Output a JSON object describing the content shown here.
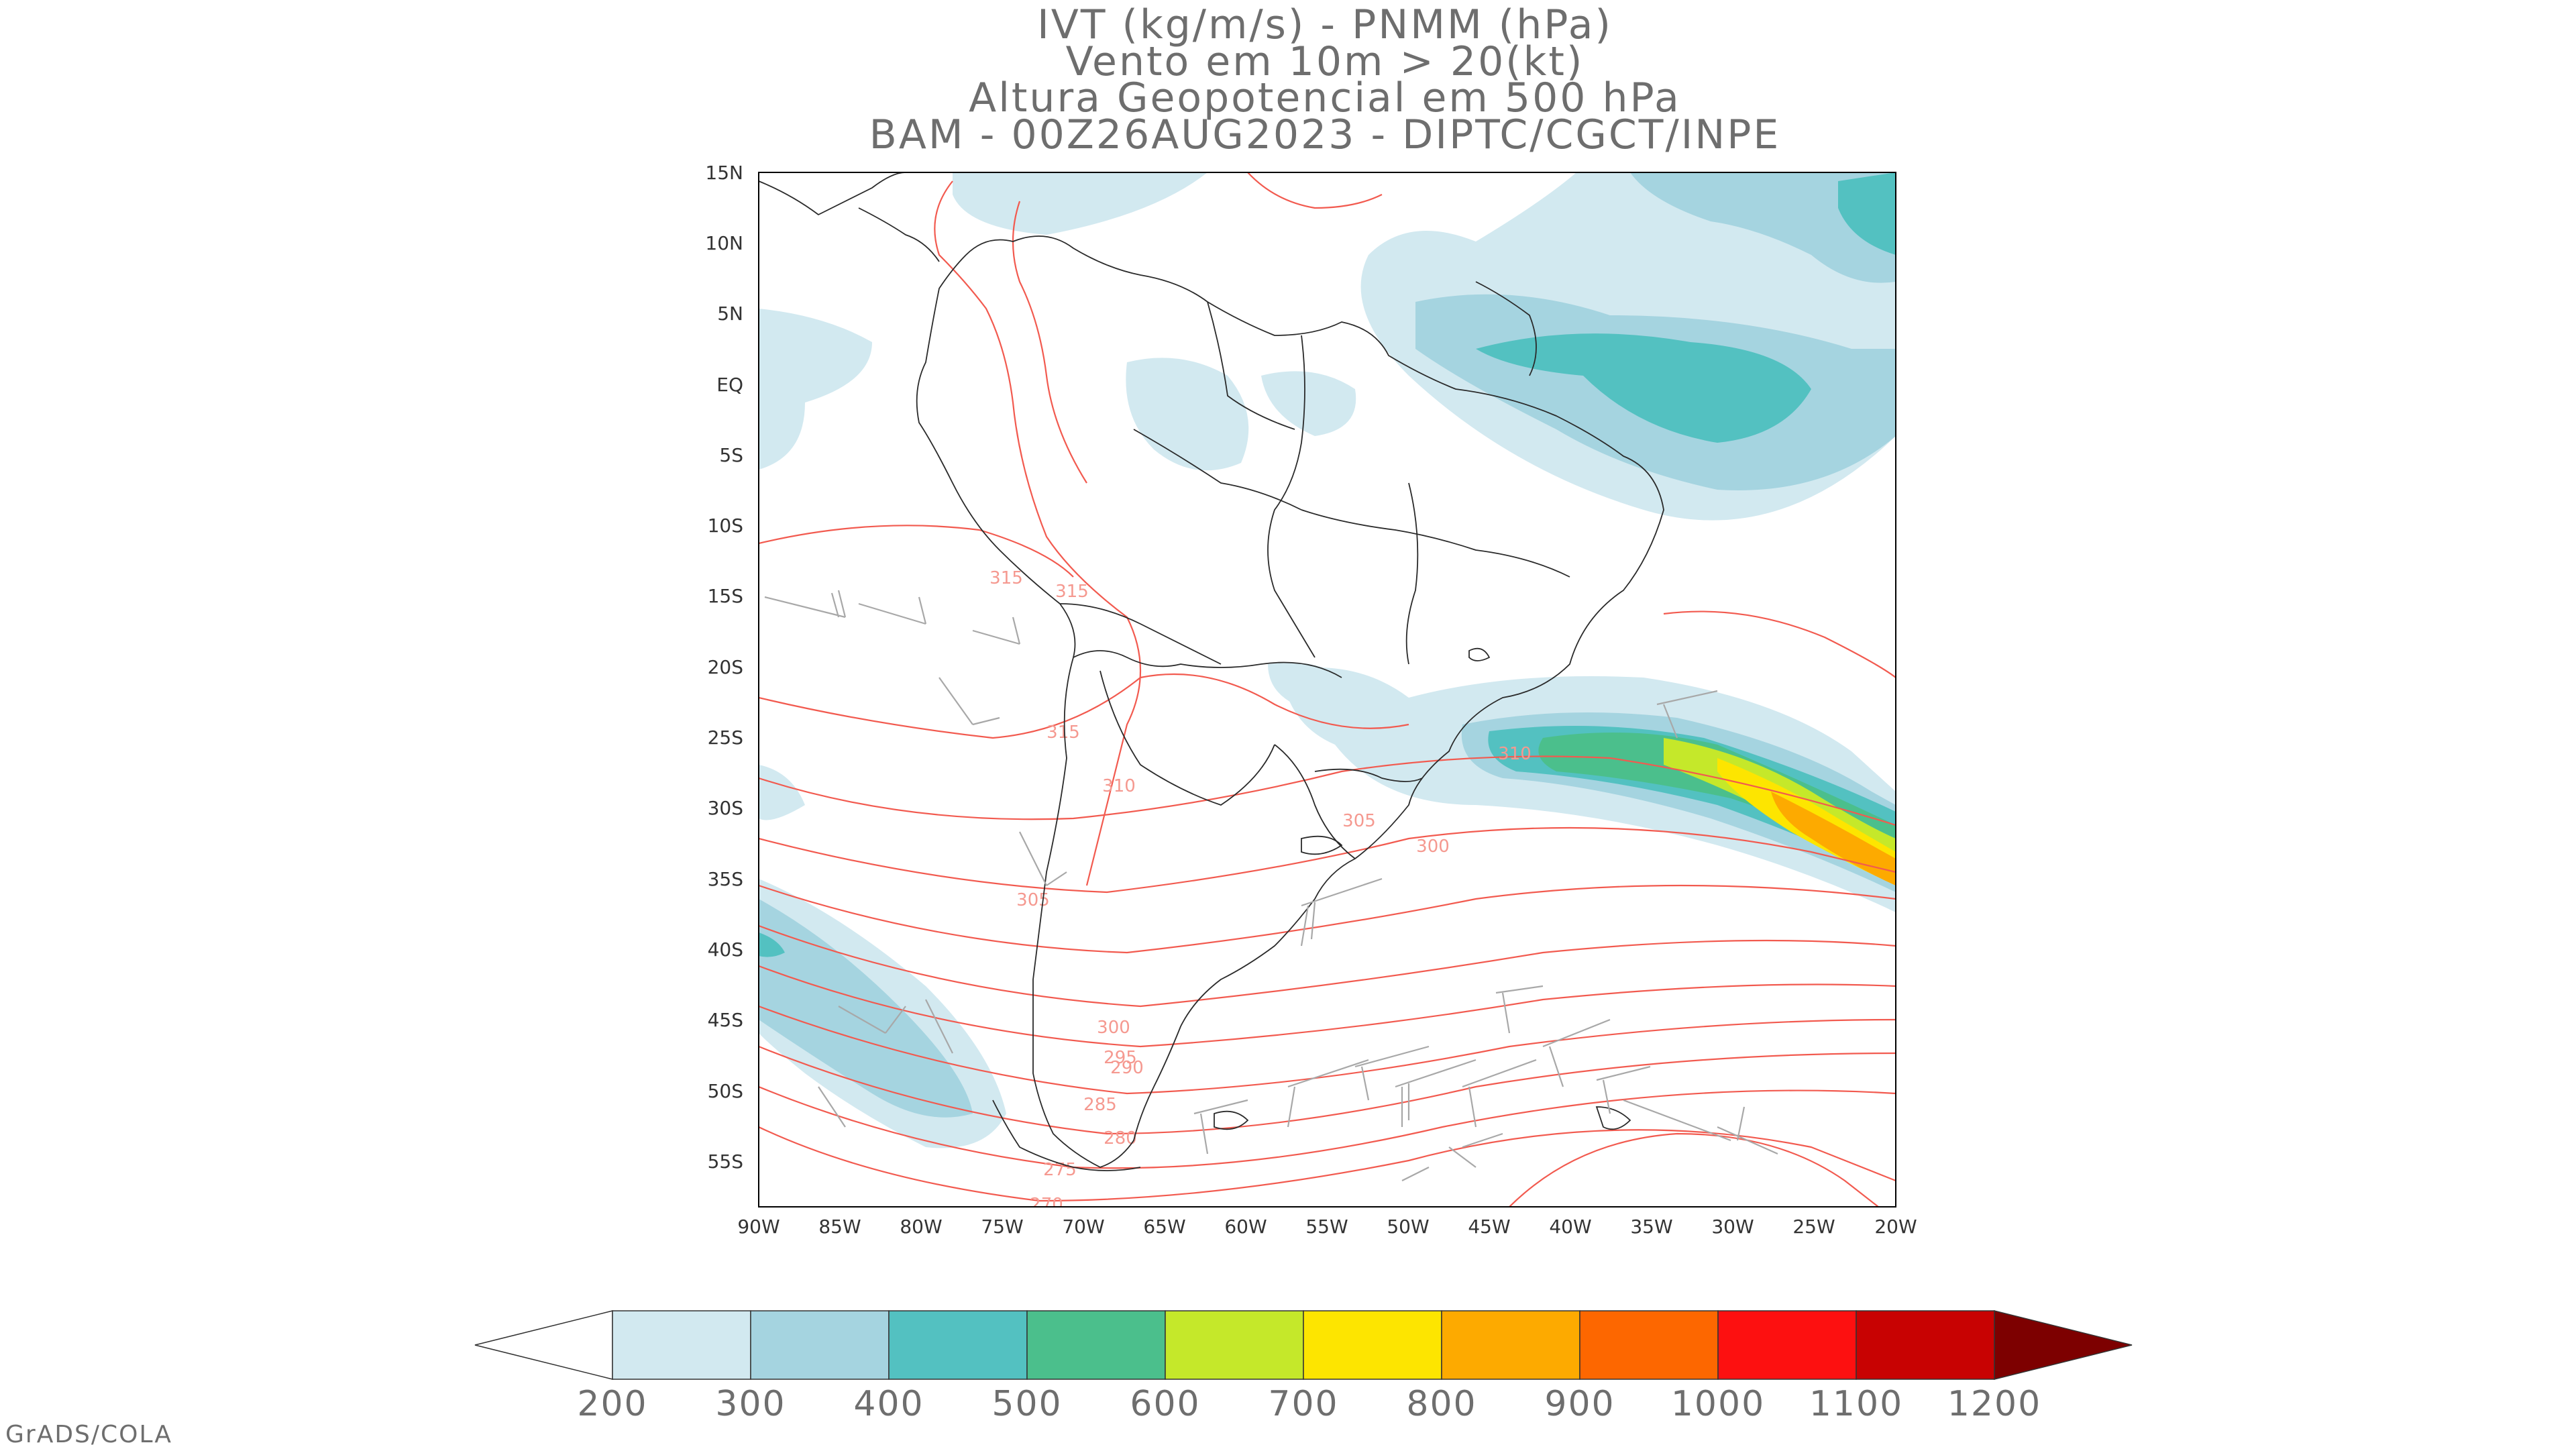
{
  "title_lines": [
    "IVT (kg/m/s) - PNMM (hPa)",
    "Vento em 10m > 20(kt)",
    "Altura Geopotencial em 500 hPa",
    "BAM - 00Z26AUG2023 - DIPTC/CGCT/INPE"
  ],
  "lat_labels": [
    "15N",
    "10N",
    "5N",
    "EQ",
    "5S",
    "10S",
    "15S",
    "20S",
    "25S",
    "30S",
    "35S",
    "40S",
    "45S",
    "50S",
    "55S"
  ],
  "lon_labels": [
    "90W",
    "85W",
    "80W",
    "75W",
    "70W",
    "65W",
    "60W",
    "55W",
    "50W",
    "45W",
    "40W",
    "35W",
    "30W",
    "25W",
    "20W"
  ],
  "contour_labels": [
    "315",
    "315",
    "315",
    "310",
    "305",
    "300",
    "310",
    "305",
    "300",
    "295",
    "290",
    "285",
    "280",
    "275",
    "270"
  ],
  "colorbar": {
    "ticks": [
      "200",
      "300",
      "400",
      "500",
      "600",
      "700",
      "800",
      "900",
      "1000",
      "1100",
      "1200"
    ],
    "colors": [
      "#d2e9f0",
      "#a5d4e0",
      "#53c1c1",
      "#4bbf8c",
      "#c5e82a",
      "#fde500",
      "#fdaa00",
      "#fd6700",
      "#fd1010",
      "#c80202"
    ],
    "low_end": "#ffffff",
    "high_end": "#7d0000"
  },
  "contour_color": "#f25a4f",
  "barb_color": "#a8a8a8",
  "footer": "GrADS/COLA"
}
